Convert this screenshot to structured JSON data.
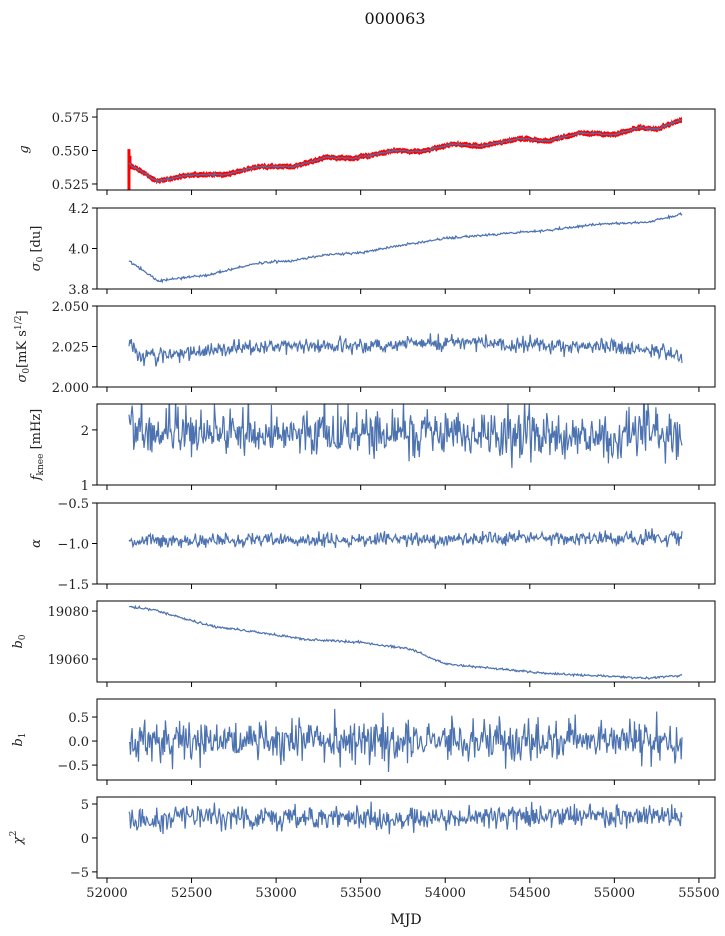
{
  "chart_data": {
    "type": "line",
    "title": "000063",
    "xlabel": "MJD",
    "xlim": [
      51941,
      55595
    ],
    "xticks": [
      52000,
      52500,
      53000,
      53500,
      54000,
      54500,
      55000,
      55500
    ],
    "x_range": [
      52130,
      55400
    ],
    "colors": {
      "line": "#4c72b0",
      "band": "#ff0000"
    },
    "panels": [
      {
        "ylabel": {
          "base": "g",
          "sub": "",
          "rest": ""
        },
        "ylim": [
          0.5205,
          0.581
        ],
        "yticks": [
          0.525,
          0.55,
          0.575
        ],
        "ytick_labels": [
          "0.525",
          "0.550",
          "0.575"
        ],
        "trend": [
          [
            52130,
            0.54
          ],
          [
            52300,
            0.527
          ],
          [
            52500,
            0.532
          ],
          [
            52700,
            0.532
          ],
          [
            52900,
            0.538
          ],
          [
            53100,
            0.538
          ],
          [
            53300,
            0.545
          ],
          [
            53450,
            0.544
          ],
          [
            53700,
            0.55
          ],
          [
            53850,
            0.549
          ],
          [
            54050,
            0.555
          ],
          [
            54200,
            0.553
          ],
          [
            54450,
            0.559
          ],
          [
            54600,
            0.557
          ],
          [
            54800,
            0.563
          ],
          [
            55000,
            0.562
          ],
          [
            55150,
            0.567
          ],
          [
            55250,
            0.566
          ],
          [
            55400,
            0.573
          ]
        ],
        "noise": 0.0004,
        "band": 0.0015
      },
      {
        "ylabel": {
          "base": "σ",
          "sub": "0",
          "rest": " [du]"
        },
        "ylim": [
          3.8,
          4.2
        ],
        "yticks": [
          3.8,
          4.0,
          4.2
        ],
        "ytick_labels": [
          "3.8",
          "4.0",
          "4.2"
        ],
        "trend": [
          [
            52130,
            3.94
          ],
          [
            52300,
            3.84
          ],
          [
            52600,
            3.87
          ],
          [
            52900,
            3.93
          ],
          [
            53100,
            3.94
          ],
          [
            53300,
            3.97
          ],
          [
            53500,
            3.98
          ],
          [
            53700,
            4.01
          ],
          [
            54000,
            4.05
          ],
          [
            54300,
            4.07
          ],
          [
            54600,
            4.09
          ],
          [
            54900,
            4.12
          ],
          [
            55200,
            4.13
          ],
          [
            55400,
            4.17
          ]
        ],
        "noise": 0.003
      },
      {
        "ylabel": {
          "base": "σ",
          "sub": "0",
          "rest": "[mK s",
          "sup": "1/2",
          "end": "]"
        },
        "ylim": [
          2.0,
          2.05
        ],
        "yticks": [
          2.0,
          2.025,
          2.05
        ],
        "ytick_labels": [
          "2.000",
          "2.025",
          "2.050"
        ],
        "trend": [
          [
            52130,
            2.029
          ],
          [
            52180,
            2.019
          ],
          [
            52600,
            2.022
          ],
          [
            53000,
            2.026
          ],
          [
            53500,
            2.025
          ],
          [
            54000,
            2.028
          ],
          [
            54500,
            2.026
          ],
          [
            55000,
            2.025
          ],
          [
            55400,
            2.019
          ]
        ],
        "noise": 0.0025
      },
      {
        "ylabel": {
          "base": "f",
          "sub": "knee",
          "rest": " [mHz]"
        },
        "ylim": [
          1,
          2.47
        ],
        "yticks": [
          1,
          2
        ],
        "ytick_labels": [
          "1",
          "2"
        ],
        "trend": [
          [
            52130,
            1.95
          ],
          [
            55400,
            1.88
          ]
        ],
        "noise": 0.2
      },
      {
        "ylabel": {
          "base": "α",
          "sub": "",
          "rest": ""
        },
        "ylim": [
          -1.5,
          -0.5
        ],
        "yticks": [
          -1.5,
          -1.0,
          -0.5
        ],
        "ytick_labels": [
          "−1.5",
          "−1.0",
          "−0.5"
        ],
        "trend": [
          [
            52130,
            -0.97
          ],
          [
            55400,
            -0.93
          ]
        ],
        "noise": 0.045
      },
      {
        "ylabel": {
          "base": "b",
          "sub": "0",
          "rest": ""
        },
        "ylim": [
          19050.4,
          19084.2
        ],
        "yticks": [
          19060,
          19080
        ],
        "ytick_labels": [
          "19060",
          "19080"
        ],
        "trend": [
          [
            52130,
            19082
          ],
          [
            52300,
            19080
          ],
          [
            52600,
            19074
          ],
          [
            52800,
            19072
          ],
          [
            53000,
            19070
          ],
          [
            53200,
            19068
          ],
          [
            53500,
            19067
          ],
          [
            53800,
            19064
          ],
          [
            54000,
            19058
          ],
          [
            54300,
            19056
          ],
          [
            54600,
            19054
          ],
          [
            54900,
            19053
          ],
          [
            55200,
            19052
          ],
          [
            55400,
            19053
          ]
        ],
        "noise": 0.25
      },
      {
        "ylabel": {
          "base": "b",
          "sub": "1",
          "rest": ""
        },
        "ylim": [
          -0.81,
          0.875
        ],
        "yticks": [
          -0.5,
          0,
          0.5
        ],
        "ytick_labels": [
          "−0.5",
          "0.0",
          "0.5"
        ],
        "trend": [
          [
            52130,
            0
          ],
          [
            55400,
            0
          ]
        ],
        "noise": 0.22
      },
      {
        "ylabel": {
          "base": "χ",
          "sup": "2",
          "rest": ""
        },
        "ylim": [
          -5.9,
          6.03
        ],
        "yticks": [
          -5,
          0,
          5
        ],
        "ytick_labels": [
          "−5",
          "0",
          "5"
        ],
        "trend": [
          [
            52130,
            2.3
          ],
          [
            52400,
            3.2
          ],
          [
            53000,
            3
          ],
          [
            53500,
            3
          ],
          [
            54000,
            3
          ],
          [
            54500,
            3.3
          ],
          [
            55000,
            3.2
          ],
          [
            55400,
            3.5
          ]
        ],
        "noise": 0.9
      }
    ]
  }
}
